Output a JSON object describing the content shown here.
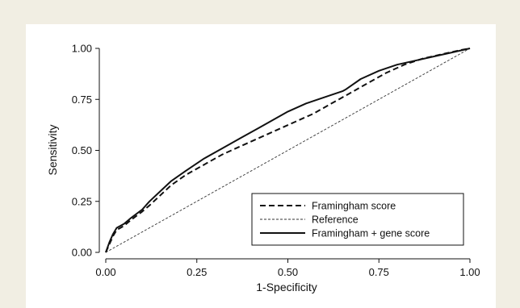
{
  "colors": {
    "page_background": "#f1eee3",
    "panel_background": "#ffffff",
    "ink": "#111111"
  },
  "chart_data": {
    "type": "line",
    "title": "",
    "xlabel": "1-Specificity",
    "ylabel": "Sensitivity",
    "xlim": [
      0,
      1
    ],
    "ylim": [
      0,
      1
    ],
    "x_ticks": [
      "0.00",
      "0.25",
      "0.50",
      "0.75",
      "1.00"
    ],
    "y_ticks": [
      "0.00",
      "0.25",
      "0.50",
      "0.75",
      "1.00"
    ],
    "grid": false,
    "legend_position": "bottom-right",
    "series": [
      {
        "name": "Framingham score",
        "style": "dashed",
        "x": [
          0,
          0.01,
          0.02,
          0.03,
          0.05,
          0.07,
          0.1,
          0.12,
          0.15,
          0.18,
          0.22,
          0.27,
          0.32,
          0.37,
          0.42,
          0.47,
          0.52,
          0.57,
          0.62,
          0.67,
          0.72,
          0.77,
          0.82,
          0.87,
          0.92,
          0.97,
          1.0
        ],
        "y": [
          0,
          0.04,
          0.08,
          0.11,
          0.13,
          0.16,
          0.2,
          0.23,
          0.28,
          0.33,
          0.38,
          0.43,
          0.48,
          0.52,
          0.56,
          0.6,
          0.64,
          0.68,
          0.73,
          0.78,
          0.83,
          0.88,
          0.92,
          0.95,
          0.97,
          0.99,
          1.0
        ]
      },
      {
        "name": "Reference",
        "style": "dotted",
        "x": [
          0,
          1
        ],
        "y": [
          0,
          1
        ]
      },
      {
        "name": "Framingham + gene score",
        "style": "solid",
        "x": [
          0,
          0.01,
          0.02,
          0.03,
          0.05,
          0.07,
          0.1,
          0.12,
          0.15,
          0.18,
          0.22,
          0.27,
          0.32,
          0.37,
          0.42,
          0.47,
          0.5,
          0.55,
          0.6,
          0.65,
          0.66,
          0.7,
          0.75,
          0.8,
          0.85,
          0.9,
          0.95,
          1.0
        ],
        "y": [
          0,
          0.05,
          0.09,
          0.12,
          0.14,
          0.17,
          0.21,
          0.25,
          0.3,
          0.35,
          0.4,
          0.46,
          0.51,
          0.56,
          0.61,
          0.66,
          0.69,
          0.73,
          0.76,
          0.79,
          0.8,
          0.85,
          0.89,
          0.92,
          0.94,
          0.96,
          0.98,
          1.0
        ]
      }
    ]
  }
}
